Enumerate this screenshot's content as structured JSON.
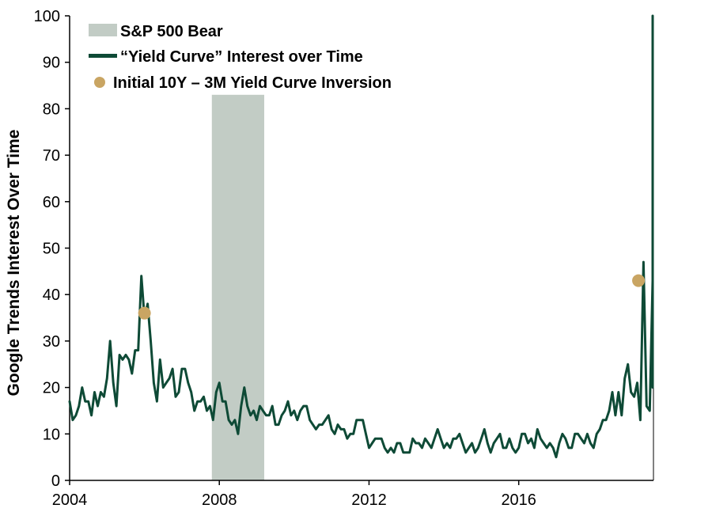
{
  "chart_data": {
    "type": "line",
    "ylabel": "Google Trends Interest Over Time",
    "xlabel": "",
    "ylim": [
      0,
      100
    ],
    "xlim": [
      2004,
      2019.6
    ],
    "y_ticks": [
      0,
      10,
      20,
      30,
      40,
      50,
      60,
      70,
      80,
      90,
      100
    ],
    "x_ticks": [
      2004,
      2008,
      2012,
      2016
    ],
    "x_tick_labels": [
      "2004",
      "2008",
      "2012",
      "2016"
    ],
    "grid": false,
    "legend_position": "top-left",
    "colors": {
      "line": "#0e4a36",
      "bear_shading": "#c2ccc5",
      "marker": "#c9a563"
    },
    "legend": [
      {
        "kind": "band",
        "label": "S&P 500 Bear"
      },
      {
        "kind": "line",
        "label": "“Yield Curve” Interest over Time"
      },
      {
        "kind": "marker",
        "label": "Initial 10Y – 3M Yield Curve Inversion"
      }
    ],
    "bear_periods": [
      {
        "start": 2007.8,
        "end": 2009.2,
        "ymax": 83
      }
    ],
    "inversion_points": [
      {
        "x": 2006.0,
        "y": 36
      },
      {
        "x": 2019.2,
        "y": 43
      }
    ],
    "series": [
      {
        "name": "“Yield Curve” Interest over Time",
        "x_start": 2004.0,
        "x_step": 0.083333,
        "values": [
          17,
          13,
          14,
          16,
          20,
          17,
          17,
          14,
          19,
          16,
          19,
          18,
          22,
          30,
          21,
          16,
          27,
          26,
          27,
          26,
          23,
          28,
          28,
          44,
          35,
          38,
          30,
          21,
          17,
          26,
          20,
          21,
          22,
          24,
          18,
          19,
          24,
          24,
          21,
          19,
          15,
          17,
          17,
          18,
          15,
          16,
          13,
          19,
          21,
          17,
          17,
          13,
          12,
          13,
          10,
          16,
          20,
          16,
          14,
          15,
          13,
          16,
          15,
          14,
          14,
          16,
          12,
          12,
          14,
          15,
          17,
          14,
          15,
          13,
          15,
          16,
          16,
          13,
          12,
          11,
          12,
          12,
          13,
          14,
          11,
          10,
          12,
          11,
          11,
          9,
          10,
          10,
          13,
          13,
          13,
          10,
          7,
          8,
          9,
          9,
          9,
          7,
          6,
          7,
          6,
          8,
          8,
          6,
          6,
          6,
          9,
          8,
          8,
          7,
          9,
          8,
          7,
          9,
          11,
          9,
          7,
          8,
          7,
          9,
          9,
          10,
          8,
          6,
          7,
          8,
          6,
          7,
          9,
          11,
          8,
          6,
          8,
          9,
          10,
          7,
          7,
          9,
          7,
          6,
          7,
          10,
          10,
          8,
          9,
          7,
          11,
          9,
          8,
          7,
          8,
          7,
          5,
          8,
          10,
          9,
          7,
          7,
          10,
          10,
          9,
          8,
          10,
          8,
          7,
          10,
          11,
          13,
          13,
          15,
          19,
          14,
          19,
          14,
          22,
          25,
          19,
          18,
          21,
          13,
          47,
          16,
          15,
          43,
          21,
          21,
          21,
          22,
          20,
          100
        ]
      }
    ]
  }
}
